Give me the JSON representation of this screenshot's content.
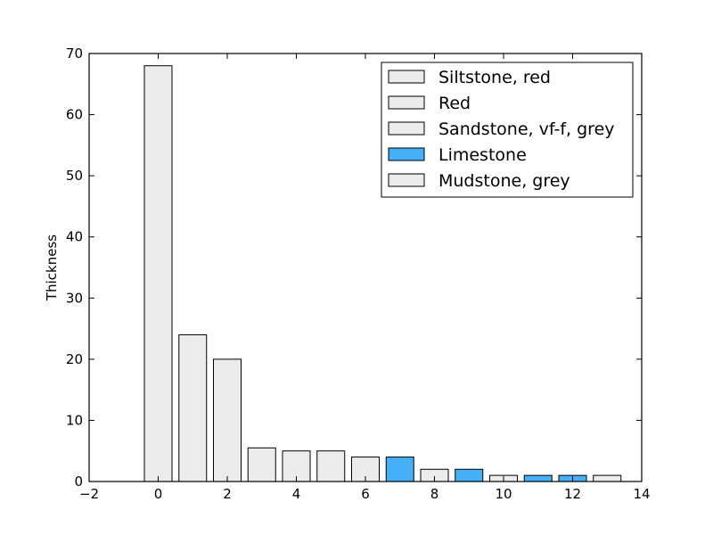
{
  "chart_data": {
    "type": "bar",
    "title": "",
    "xlabel": "",
    "ylabel": "Thickness",
    "xlim": [
      -2,
      14
    ],
    "ylim": [
      0,
      70
    ],
    "xticks": [
      -2,
      0,
      2,
      4,
      6,
      8,
      10,
      12,
      14
    ],
    "yticks": [
      0,
      10,
      20,
      30,
      40,
      50,
      60,
      70
    ],
    "bar_width": 0.8,
    "grid": false,
    "legend_position": "top-right",
    "colors": {
      "default": "#ececec",
      "limestone": "#45b0f8",
      "edge": "#000000"
    },
    "legend": [
      {
        "label": "Siltstone, red",
        "color": "#ececec"
      },
      {
        "label": "Red",
        "color": "#ececec"
      },
      {
        "label": "Sandstone, vf-f, grey",
        "color": "#ececec"
      },
      {
        "label": "Limestone",
        "color": "#45b0f8"
      },
      {
        "label": "Mudstone, grey",
        "color": "#ececec"
      }
    ],
    "bars": [
      {
        "x": 0,
        "value": 68,
        "color": "#ececec"
      },
      {
        "x": 1,
        "value": 24,
        "color": "#ececec"
      },
      {
        "x": 2,
        "value": 20,
        "color": "#ececec"
      },
      {
        "x": 3,
        "value": 5.5,
        "color": "#ececec"
      },
      {
        "x": 4,
        "value": 5,
        "color": "#ececec"
      },
      {
        "x": 5,
        "value": 5,
        "color": "#ececec"
      },
      {
        "x": 6,
        "value": 4,
        "color": "#ececec"
      },
      {
        "x": 7,
        "value": 4,
        "color": "#45b0f8"
      },
      {
        "x": 8,
        "value": 2,
        "color": "#ececec"
      },
      {
        "x": 9,
        "value": 2,
        "color": "#45b0f8"
      },
      {
        "x": 10,
        "value": 1,
        "color": "#ececec"
      },
      {
        "x": 11,
        "value": 1,
        "color": "#45b0f8"
      },
      {
        "x": 12,
        "value": 1,
        "color": "#45b0f8"
      },
      {
        "x": 13,
        "value": 1,
        "color": "#ececec"
      }
    ]
  }
}
